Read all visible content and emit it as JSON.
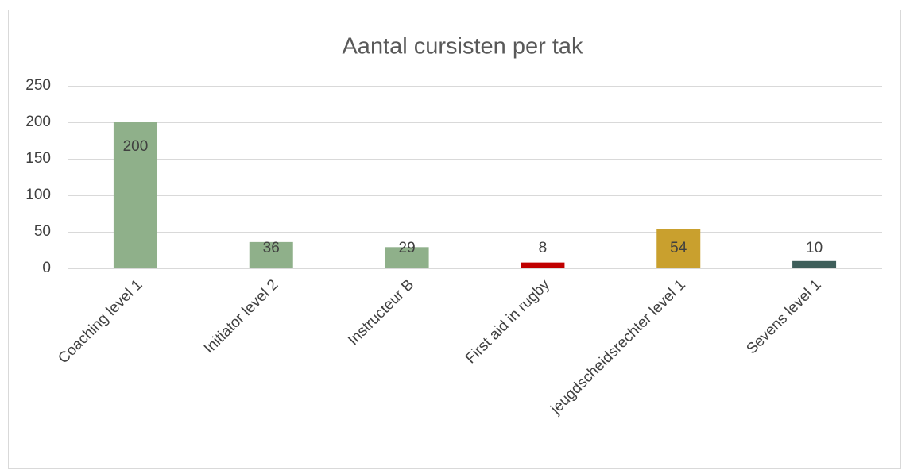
{
  "chart_data": {
    "type": "bar",
    "title": "Aantal cursisten per tak",
    "categories": [
      "Coaching level 1",
      "Initiator level 2",
      "Instructeur B",
      "First aid in rugby",
      "jeugdscheidsrechter level 1",
      "Sevens level 1"
    ],
    "values": [
      200,
      36,
      29,
      8,
      54,
      10
    ],
    "colors": [
      "#8fb08a",
      "#8fb08a",
      "#8fb08a",
      "#c00000",
      "#c9a02e",
      "#3e5e5a"
    ],
    "ylim": [
      0,
      250
    ],
    "yticks": [
      0,
      50,
      100,
      150,
      200,
      250
    ],
    "grid": true
  }
}
